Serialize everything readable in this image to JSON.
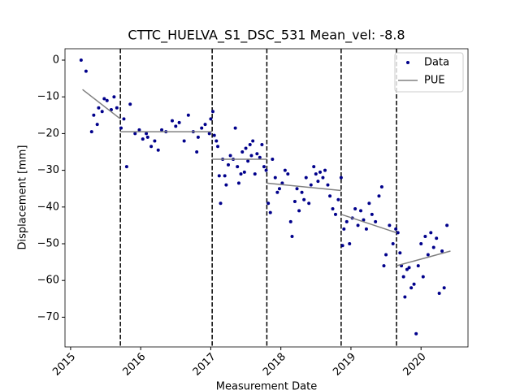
{
  "chart_data": {
    "type": "scatter",
    "title": "CTTC_HUELVA_S1_DSC_531    Mean_vel: -8.8",
    "xlabel": "Measurement Date",
    "ylabel": "Displacement [mm]",
    "xlim": [
      2014.92,
      2020.67
    ],
    "ylim": [
      -78.1,
      3.1
    ],
    "xticks": [
      2015,
      2016,
      2017,
      2018,
      2019,
      2020
    ],
    "yticks": [
      0,
      {
        "value": -10,
        "label": "−10"
      },
      {
        "value": -20,
        "label": "−20"
      },
      {
        "value": -30,
        "label": "−30"
      },
      {
        "value": -40,
        "label": "−40"
      },
      {
        "value": -50,
        "label": "−50"
      },
      {
        "value": -60,
        "label": "−60"
      },
      {
        "value": -70,
        "label": "−70"
      }
    ],
    "breakpoints": [
      2015.71,
      2017.02,
      2017.8,
      2018.86,
      2019.65
    ],
    "legend": "upper right",
    "series": [
      {
        "name": "Data",
        "color": "#00008b",
        "style": "markers",
        "x": [
          2015.15,
          2015.22,
          2015.3,
          2015.33,
          2015.38,
          2015.4,
          2015.45,
          2015.48,
          2015.52,
          2015.58,
          2015.62,
          2015.66,
          2015.72,
          2015.76,
          2015.8,
          2015.85,
          2015.92,
          2015.98,
          2016.03,
          2016.08,
          2016.1,
          2016.15,
          2016.2,
          2016.25,
          2016.3,
          2016.36,
          2016.45,
          2016.5,
          2016.55,
          2016.62,
          2016.68,
          2016.75,
          2016.8,
          2016.82,
          2016.87,
          2016.92,
          2016.98,
          2017.0,
          2017.03,
          2017.05,
          2017.08,
          2017.1,
          2017.12,
          2017.14,
          2017.17,
          2017.2,
          2017.22,
          2017.25,
          2017.28,
          2017.32,
          2017.35,
          2017.38,
          2017.4,
          2017.43,
          2017.45,
          2017.48,
          2017.5,
          2017.53,
          2017.56,
          2017.58,
          2017.6,
          2017.63,
          2017.66,
          2017.7,
          2017.73,
          2017.76,
          2017.79,
          2017.82,
          2017.85,
          2017.88,
          2017.92,
          2017.95,
          2017.98,
          2018.02,
          2018.06,
          2018.1,
          2018.14,
          2018.16,
          2018.2,
          2018.23,
          2018.26,
          2018.3,
          2018.33,
          2018.36,
          2018.4,
          2018.43,
          2018.47,
          2018.5,
          2018.53,
          2018.56,
          2018.6,
          2018.63,
          2018.67,
          2018.7,
          2018.74,
          2018.78,
          2018.82,
          2018.86,
          2018.88,
          2018.9,
          2018.94,
          2018.98,
          2019.02,
          2019.06,
          2019.1,
          2019.14,
          2019.18,
          2019.22,
          2019.26,
          2019.3,
          2019.35,
          2019.4,
          2019.44,
          2019.47,
          2019.5,
          2019.55,
          2019.6,
          2019.64,
          2019.67,
          2019.7,
          2019.72,
          2019.75,
          2019.77,
          2019.8,
          2019.83,
          2019.86,
          2019.9,
          2019.93,
          2019.96,
          2020.0,
          2020.03,
          2020.06,
          2020.1,
          2020.14,
          2020.18,
          2020.22,
          2020.26,
          2020.3,
          2020.33,
          2020.37
        ],
        "values": [
          0,
          -3,
          -19.5,
          -15,
          -17.5,
          -13,
          -14,
          -10.5,
          -11,
          -13.5,
          -10,
          -13,
          -18.5,
          -16,
          -29,
          -12,
          -20,
          -19,
          -21.5,
          -20,
          -21,
          -23.5,
          -22,
          -24.5,
          -19,
          -19.5,
          -16.5,
          -18,
          -17,
          -22,
          -15,
          -19.5,
          -25,
          -21,
          -18.5,
          -17.5,
          -20,
          -16,
          -14,
          -20.5,
          -22,
          -23.5,
          -31.5,
          -39,
          -27,
          -31.5,
          -34,
          -28.5,
          -26,
          -27,
          -18.5,
          -29,
          -33.5,
          -31,
          -25,
          -30.5,
          -24,
          -27.5,
          -23,
          -26,
          -22,
          -31,
          -25.5,
          -26.5,
          -23,
          -29,
          -30,
          -39,
          -41.5,
          -27,
          -32,
          -36,
          -35,
          -33.5,
          -30,
          -31,
          -44,
          -48,
          -38.5,
          -35,
          -41,
          -36,
          -38,
          -32,
          -39,
          -34,
          -29,
          -31,
          -33,
          -30.5,
          -32,
          -30,
          -34,
          -37,
          -40.5,
          -42,
          -38,
          -32,
          -50.5,
          -46,
          -44,
          -50,
          -43,
          -40.5,
          -45,
          -41,
          -43.5,
          -46,
          -39,
          -42,
          -44,
          -37,
          -34.5,
          -56,
          -53,
          -45,
          -50,
          -46,
          -47,
          -52.5,
          -56,
          -59,
          -64.5,
          -57,
          -56.5,
          -62,
          -61,
          -74.5,
          -56,
          -50,
          -59,
          -48,
          -53,
          -47,
          -51,
          -48.5,
          -63.5,
          -52,
          -62,
          -45
        ]
      },
      {
        "name": "PUE",
        "color": "#808080",
        "style": "line",
        "x": [
          2015.17,
          2015.71,
          null,
          2015.71,
          2017.02,
          null,
          2017.02,
          2017.8,
          null,
          2017.8,
          2018.86,
          null,
          2018.86,
          2019.65,
          null,
          2019.65,
          2020.42
        ],
        "values": [
          -8,
          -16,
          null,
          -19.5,
          -19.5,
          null,
          -27,
          -27,
          null,
          -33.5,
          -35.5,
          null,
          -42,
          -47,
          null,
          -56,
          -52
        ]
      }
    ]
  }
}
